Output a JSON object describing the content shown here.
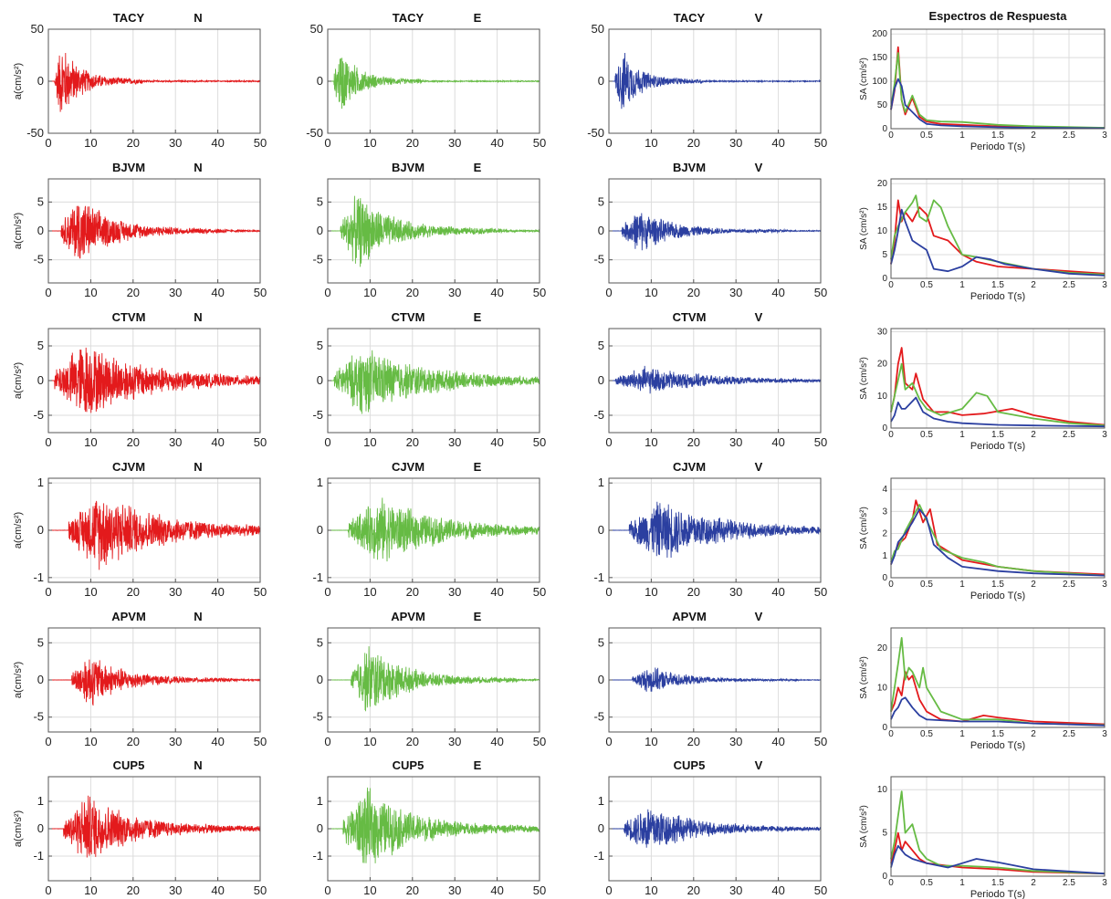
{
  "figure": {
    "spectra_title": "Espectros de Respuesta",
    "time_ylabel": "a(cm/s²)",
    "spectra_ylabel": "SA (cm/s²)",
    "spectra_xlabel": "Periodo T(s)"
  },
  "colors": {
    "N": "#e31a1c",
    "E": "#66bb44",
    "V": "#2b3fa0"
  },
  "chart_data": [
    {
      "type": "line",
      "station": "TACY",
      "components": [
        "N",
        "E",
        "V"
      ],
      "xlim": [
        0,
        50
      ],
      "ylim": [
        -50,
        50
      ],
      "yticks": [
        -50,
        0,
        50
      ],
      "peak_time_s": 3,
      "duration_s": 12,
      "amp": {
        "N": 40,
        "E": 34,
        "V": 33
      }
    },
    {
      "type": "line",
      "station": "BJVM",
      "components": [
        "N",
        "E",
        "V"
      ],
      "xlim": [
        0,
        50
      ],
      "ylim": [
        -9,
        9
      ],
      "yticks": [
        -5,
        0,
        5
      ],
      "peak_time_s": 7,
      "duration_s": 22,
      "amp": {
        "N": 6.5,
        "E": 7,
        "V": 4
      }
    },
    {
      "type": "line",
      "station": "CTVM",
      "components": [
        "N",
        "E",
        "V"
      ],
      "xlim": [
        0,
        50
      ],
      "ylim": [
        -7.5,
        7.5
      ],
      "yticks": [
        -5,
        0,
        5
      ],
      "peak_time_s": 8,
      "duration_s": 42,
      "amp": {
        "N": 6,
        "E": 5.3,
        "V": 2.2
      }
    },
    {
      "type": "line",
      "station": "CJVM",
      "components": [
        "N",
        "E",
        "V"
      ],
      "xlim": [
        0,
        50
      ],
      "ylim": [
        -1.1,
        1.1
      ],
      "yticks": [
        -1,
        0,
        1
      ],
      "peak_time_s": 12,
      "duration_s": 40,
      "amp": {
        "N": 0.9,
        "E": 0.75,
        "V": 0.7
      }
    },
    {
      "type": "line",
      "station": "APVM",
      "components": [
        "N",
        "E",
        "V"
      ],
      "xlim": [
        0,
        50
      ],
      "ylim": [
        -7,
        7
      ],
      "yticks": [
        -5,
        0,
        5
      ],
      "peak_time_s": 9.5,
      "duration_s": 22,
      "amp": {
        "N": 4,
        "E": 5.3,
        "V": 2
      }
    },
    {
      "type": "line",
      "station": "CUP5",
      "components": [
        "N",
        "E",
        "V"
      ],
      "xlim": [
        0,
        50
      ],
      "ylim": [
        -1.9,
        1.9
      ],
      "yticks": [
        -1,
        0,
        1
      ],
      "peak_time_s": 9,
      "duration_s": 30,
      "amp": {
        "N": 1.4,
        "E": 1.6,
        "V": 1.0
      }
    }
  ],
  "spectra": [
    {
      "station": "TACY",
      "ylim": [
        0,
        210
      ],
      "yticks": [
        0,
        50,
        100,
        150,
        200
      ],
      "xlim": [
        0,
        3
      ],
      "N": [
        [
          0,
          40
        ],
        [
          0.05,
          80
        ],
        [
          0.1,
          172
        ],
        [
          0.15,
          60
        ],
        [
          0.2,
          30
        ],
        [
          0.3,
          65
        ],
        [
          0.4,
          25
        ],
        [
          0.5,
          15
        ],
        [
          0.7,
          10
        ],
        [
          1,
          8
        ],
        [
          1.5,
          5
        ],
        [
          2,
          3
        ],
        [
          3,
          1.5
        ]
      ],
      "E": [
        [
          0,
          45
        ],
        [
          0.05,
          95
        ],
        [
          0.1,
          160
        ],
        [
          0.15,
          60
        ],
        [
          0.2,
          35
        ],
        [
          0.3,
          70
        ],
        [
          0.4,
          30
        ],
        [
          0.5,
          18
        ],
        [
          0.7,
          15
        ],
        [
          1,
          14
        ],
        [
          1.5,
          8
        ],
        [
          2,
          5
        ],
        [
          3,
          2
        ]
      ],
      "V": [
        [
          0,
          40
        ],
        [
          0.05,
          85
        ],
        [
          0.1,
          105
        ],
        [
          0.15,
          90
        ],
        [
          0.2,
          50
        ],
        [
          0.3,
          35
        ],
        [
          0.4,
          20
        ],
        [
          0.5,
          10
        ],
        [
          0.7,
          7
        ],
        [
          1,
          5
        ],
        [
          1.5,
          3
        ],
        [
          2,
          2
        ],
        [
          3,
          1
        ]
      ]
    },
    {
      "station": "BJVM",
      "ylim": [
        0,
        21
      ],
      "yticks": [
        0,
        5,
        10,
        15,
        20
      ],
      "xlim": [
        0,
        3
      ],
      "N": [
        [
          0,
          3
        ],
        [
          0.05,
          8
        ],
        [
          0.1,
          16.5
        ],
        [
          0.15,
          12
        ],
        [
          0.2,
          14
        ],
        [
          0.3,
          12
        ],
        [
          0.4,
          15
        ],
        [
          0.5,
          13.5
        ],
        [
          0.6,
          9
        ],
        [
          0.8,
          8
        ],
        [
          1,
          5
        ],
        [
          1.2,
          3.5
        ],
        [
          1.5,
          2.5
        ],
        [
          2,
          2
        ],
        [
          2.5,
          1.5
        ],
        [
          3,
          1
        ]
      ],
      "E": [
        [
          0,
          4
        ],
        [
          0.05,
          9
        ],
        [
          0.1,
          11
        ],
        [
          0.2,
          14
        ],
        [
          0.3,
          16
        ],
        [
          0.35,
          17.5
        ],
        [
          0.4,
          13
        ],
        [
          0.5,
          12
        ],
        [
          0.6,
          16.5
        ],
        [
          0.7,
          15
        ],
        [
          0.8,
          11
        ],
        [
          1,
          5
        ],
        [
          1.2,
          4.5
        ],
        [
          1.5,
          3.5
        ],
        [
          2,
          2
        ],
        [
          2.5,
          1.2
        ],
        [
          3,
          0.8
        ]
      ],
      "V": [
        [
          0,
          3
        ],
        [
          0.05,
          6
        ],
        [
          0.1,
          10
        ],
        [
          0.15,
          14.5
        ],
        [
          0.2,
          12
        ],
        [
          0.3,
          8
        ],
        [
          0.4,
          7
        ],
        [
          0.5,
          6
        ],
        [
          0.6,
          2
        ],
        [
          0.8,
          1.5
        ],
        [
          1,
          2.5
        ],
        [
          1.2,
          4.5
        ],
        [
          1.4,
          4
        ],
        [
          1.6,
          3
        ],
        [
          2,
          2
        ],
        [
          2.5,
          1
        ],
        [
          3,
          0.6
        ]
      ]
    },
    {
      "station": "CTVM",
      "ylim": [
        0,
        31
      ],
      "yticks": [
        0,
        10,
        20,
        30
      ],
      "xlim": [
        0,
        3
      ],
      "N": [
        [
          0,
          5
        ],
        [
          0.05,
          10
        ],
        [
          0.1,
          20
        ],
        [
          0.15,
          25
        ],
        [
          0.2,
          14
        ],
        [
          0.3,
          12
        ],
        [
          0.35,
          17
        ],
        [
          0.45,
          9
        ],
        [
          0.6,
          5
        ],
        [
          0.8,
          5
        ],
        [
          1,
          4
        ],
        [
          1.3,
          4.5
        ],
        [
          1.7,
          6
        ],
        [
          2,
          4
        ],
        [
          2.5,
          2
        ],
        [
          3,
          1
        ]
      ],
      "E": [
        [
          0,
          5
        ],
        [
          0.05,
          10
        ],
        [
          0.1,
          15
        ],
        [
          0.15,
          20
        ],
        [
          0.2,
          12
        ],
        [
          0.3,
          14
        ],
        [
          0.4,
          9
        ],
        [
          0.5,
          6
        ],
        [
          0.7,
          4
        ],
        [
          1,
          6
        ],
        [
          1.2,
          11
        ],
        [
          1.35,
          10
        ],
        [
          1.5,
          5
        ],
        [
          2,
          3
        ],
        [
          2.5,
          1.5
        ],
        [
          3,
          0.8
        ]
      ],
      "V": [
        [
          0,
          2
        ],
        [
          0.05,
          4
        ],
        [
          0.1,
          8
        ],
        [
          0.15,
          6
        ],
        [
          0.2,
          6
        ],
        [
          0.35,
          9.5
        ],
        [
          0.45,
          5
        ],
        [
          0.6,
          3
        ],
        [
          0.8,
          2
        ],
        [
          1,
          1.5
        ],
        [
          1.5,
          1
        ],
        [
          2,
          0.8
        ],
        [
          3,
          0.5
        ]
      ]
    },
    {
      "station": "CJVM",
      "ylim": [
        0,
        4.5
      ],
      "yticks": [
        0,
        1,
        2,
        3,
        4
      ],
      "xlim": [
        0,
        3
      ],
      "N": [
        [
          0,
          0.6
        ],
        [
          0.05,
          1.1
        ],
        [
          0.1,
          1.5
        ],
        [
          0.2,
          1.8
        ],
        [
          0.3,
          2.6
        ],
        [
          0.35,
          3.5
        ],
        [
          0.45,
          2.5
        ],
        [
          0.55,
          3.1
        ],
        [
          0.65,
          1.5
        ],
        [
          0.8,
          1.2
        ],
        [
          1,
          0.8
        ],
        [
          1.5,
          0.5
        ],
        [
          2,
          0.3
        ],
        [
          3,
          0.15
        ]
      ],
      "E": [
        [
          0,
          0.7
        ],
        [
          0.05,
          1.2
        ],
        [
          0.1,
          1.3
        ],
        [
          0.2,
          2.1
        ],
        [
          0.3,
          2.7
        ],
        [
          0.4,
          3.3
        ],
        [
          0.5,
          2.6
        ],
        [
          0.7,
          1.3
        ],
        [
          1,
          0.9
        ],
        [
          1.3,
          0.7
        ],
        [
          1.5,
          0.5
        ],
        [
          2,
          0.3
        ],
        [
          2.5,
          0.2
        ],
        [
          3,
          0.1
        ]
      ],
      "V": [
        [
          0,
          0.6
        ],
        [
          0.05,
          1.0
        ],
        [
          0.1,
          1.6
        ],
        [
          0.2,
          2.0
        ],
        [
          0.3,
          2.5
        ],
        [
          0.4,
          3.1
        ],
        [
          0.5,
          2.7
        ],
        [
          0.6,
          1.5
        ],
        [
          0.8,
          0.9
        ],
        [
          1,
          0.5
        ],
        [
          1.5,
          0.3
        ],
        [
          2,
          0.2
        ],
        [
          3,
          0.1
        ]
      ]
    },
    {
      "station": "APVM",
      "ylim": [
        0,
        25
      ],
      "yticks": [
        0,
        10,
        20
      ],
      "xlim": [
        0,
        3
      ],
      "N": [
        [
          0,
          4
        ],
        [
          0.05,
          6
        ],
        [
          0.1,
          10
        ],
        [
          0.15,
          8
        ],
        [
          0.2,
          14
        ],
        [
          0.25,
          12
        ],
        [
          0.3,
          13
        ],
        [
          0.4,
          7
        ],
        [
          0.5,
          4
        ],
        [
          0.7,
          2
        ],
        [
          1,
          1.5
        ],
        [
          1.3,
          3
        ],
        [
          1.5,
          2.5
        ],
        [
          2,
          1.5
        ],
        [
          3,
          0.8
        ]
      ],
      "E": [
        [
          0,
          4
        ],
        [
          0.05,
          10
        ],
        [
          0.1,
          16
        ],
        [
          0.15,
          22.5
        ],
        [
          0.2,
          12
        ],
        [
          0.25,
          15
        ],
        [
          0.3,
          14
        ],
        [
          0.4,
          10
        ],
        [
          0.45,
          15
        ],
        [
          0.5,
          10
        ],
        [
          0.7,
          4
        ],
        [
          1,
          2
        ],
        [
          1.5,
          2
        ],
        [
          2,
          1
        ],
        [
          3,
          0.6
        ]
      ],
      "V": [
        [
          0,
          2
        ],
        [
          0.05,
          4
        ],
        [
          0.1,
          5
        ],
        [
          0.15,
          7
        ],
        [
          0.2,
          7.5
        ],
        [
          0.3,
          5
        ],
        [
          0.4,
          3
        ],
        [
          0.5,
          2
        ],
        [
          1,
          1.5
        ],
        [
          1.5,
          1.5
        ],
        [
          2,
          1
        ],
        [
          3,
          0.5
        ]
      ]
    },
    {
      "station": "CUP5",
      "ylim": [
        0,
        11.5
      ],
      "yticks": [
        0,
        5,
        10
      ],
      "xlim": [
        0,
        3
      ],
      "N": [
        [
          0,
          1.5
        ],
        [
          0.05,
          3
        ],
        [
          0.1,
          5
        ],
        [
          0.15,
          3
        ],
        [
          0.2,
          4
        ],
        [
          0.3,
          3
        ],
        [
          0.4,
          2
        ],
        [
          0.5,
          1.5
        ],
        [
          1,
          1
        ],
        [
          1.5,
          0.8
        ],
        [
          2,
          0.5
        ],
        [
          3,
          0.3
        ]
      ],
      "E": [
        [
          0,
          2
        ],
        [
          0.05,
          4
        ],
        [
          0.1,
          7
        ],
        [
          0.15,
          9.8
        ],
        [
          0.2,
          5
        ],
        [
          0.3,
          6
        ],
        [
          0.4,
          3
        ],
        [
          0.5,
          2
        ],
        [
          0.7,
          1.2
        ],
        [
          1,
          1.2
        ],
        [
          1.5,
          1
        ],
        [
          2,
          0.6
        ],
        [
          3,
          0.3
        ]
      ],
      "V": [
        [
          0,
          1
        ],
        [
          0.05,
          2.5
        ],
        [
          0.1,
          3.5
        ],
        [
          0.2,
          2.5
        ],
        [
          0.3,
          2
        ],
        [
          0.5,
          1.5
        ],
        [
          0.8,
          1
        ],
        [
          1,
          1.5
        ],
        [
          1.2,
          2
        ],
        [
          1.5,
          1.6
        ],
        [
          2,
          0.8
        ],
        [
          3,
          0.3
        ]
      ]
    }
  ]
}
